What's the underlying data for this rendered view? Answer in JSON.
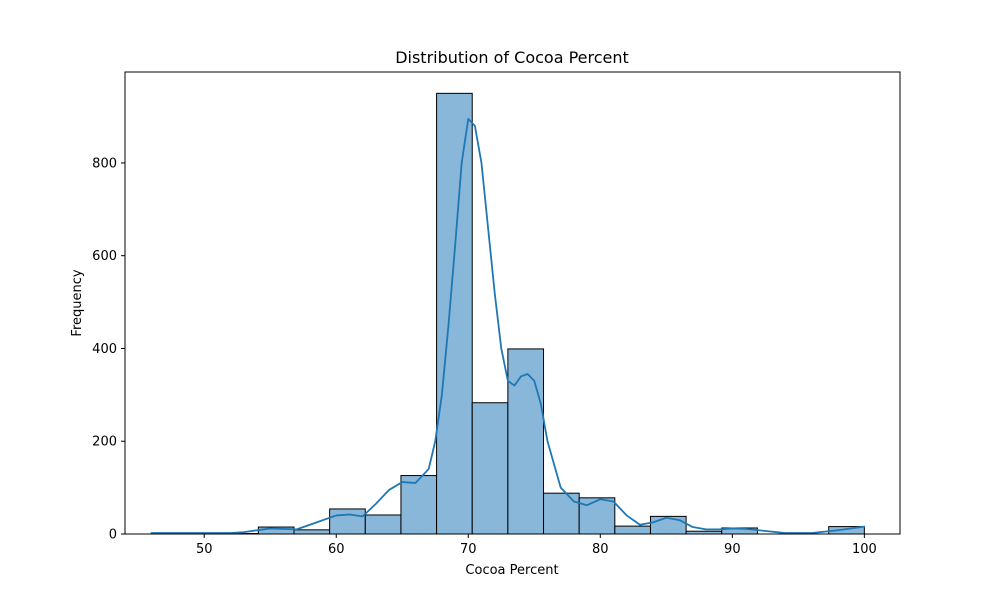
{
  "chart_data": {
    "type": "bar",
    "subtype": "histogram",
    "title": "Distribution of Cocoa Percent",
    "xlabel": "Cocoa Percent",
    "ylabel": "Frequency",
    "xlim": [
      44,
      102.7
    ],
    "ylim": [
      0,
      996
    ],
    "x_ticks": [
      50,
      60,
      70,
      80,
      90,
      100
    ],
    "y_ticks": [
      0,
      200,
      400,
      600,
      800
    ],
    "bins": {
      "start": 46,
      "width": 2.7,
      "counts": [
        2,
        0,
        1,
        15,
        9,
        54,
        41,
        126,
        950,
        283,
        399,
        88,
        78,
        17,
        38,
        6,
        13,
        0,
        0,
        16
      ]
    },
    "kde": {
      "x": [
        46,
        48,
        50,
        52,
        53,
        55,
        57,
        58,
        60,
        61,
        62,
        63,
        64,
        65,
        66,
        67,
        67.5,
        68,
        68.5,
        69,
        69.5,
        70,
        70.5,
        71,
        71.5,
        72,
        72.5,
        73,
        73.5,
        74,
        74.5,
        75,
        75.5,
        76,
        77,
        78,
        79,
        80,
        81,
        82,
        83,
        84,
        85,
        86,
        87,
        88,
        89,
        90,
        91,
        92,
        94,
        96,
        98,
        100
      ],
      "y": [
        2,
        2,
        2,
        2,
        4,
        12,
        10,
        20,
        40,
        42,
        38,
        65,
        95,
        112,
        110,
        140,
        200,
        300,
        450,
        620,
        800,
        895,
        880,
        800,
        660,
        520,
        400,
        330,
        320,
        340,
        345,
        330,
        280,
        200,
        100,
        70,
        62,
        75,
        70,
        40,
        20,
        25,
        35,
        30,
        15,
        10,
        10,
        12,
        11,
        8,
        2,
        2,
        8,
        16
      ]
    },
    "colors": {
      "bar_fill": "#88b7da",
      "bar_edge": "#000000",
      "kde_line": "#1f77b4"
    },
    "grid": false,
    "legend": "none"
  }
}
